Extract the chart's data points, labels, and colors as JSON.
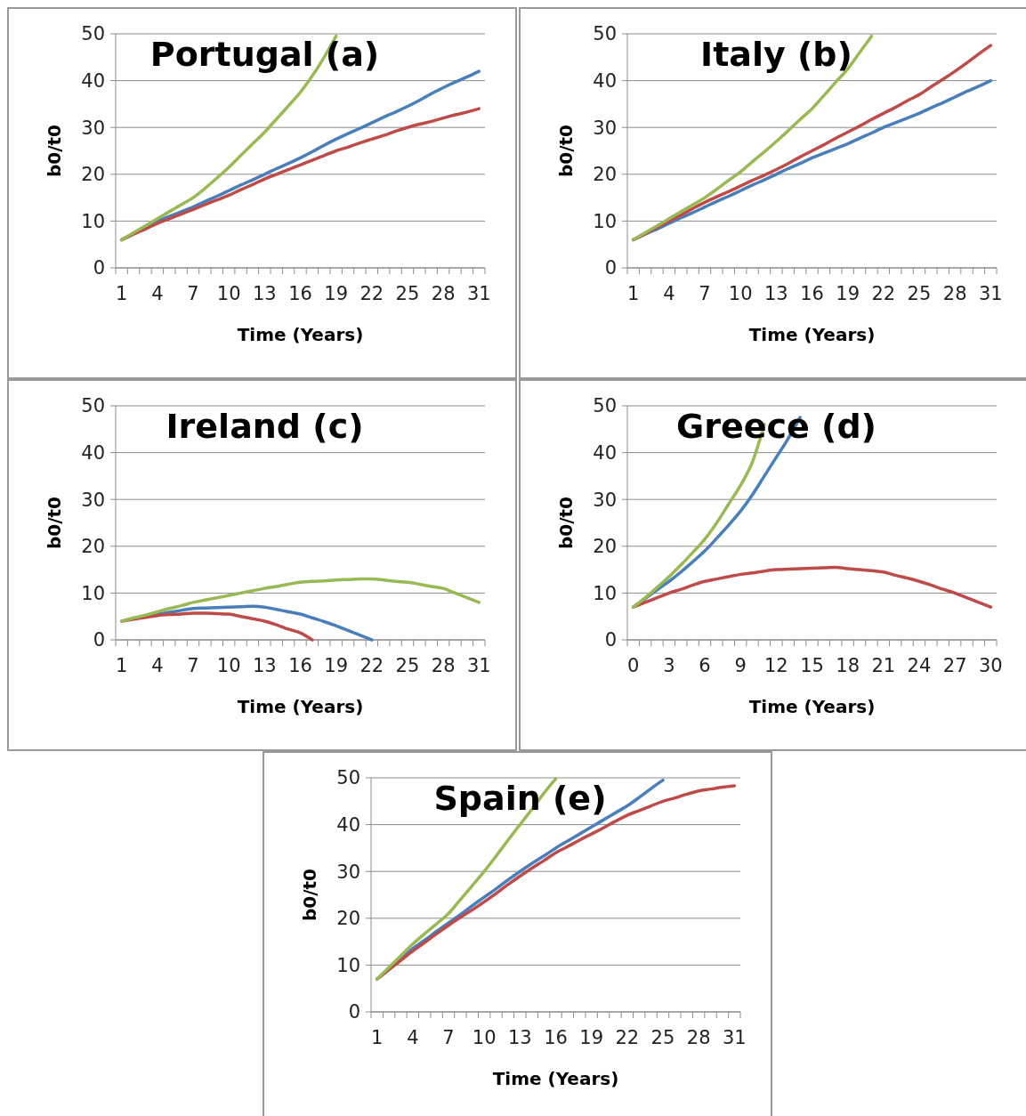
{
  "chart_data": [
    {
      "type": "line",
      "title": "Portugal (a)",
      "xlabel": "Time (Years)",
      "ylabel": "b0/t0",
      "categories": [
        "1",
        null,
        null,
        "4",
        null,
        null,
        "7",
        null,
        null,
        "10",
        null,
        null,
        "13",
        null,
        null,
        "16",
        null,
        null,
        "19",
        null,
        null,
        "22",
        null,
        null,
        "25",
        null,
        null,
        "28",
        null,
        null,
        "31"
      ],
      "ylim": [
        0,
        50
      ],
      "yticks": [
        0,
        10,
        20,
        30,
        40,
        50
      ],
      "grid": "y",
      "series": [
        {
          "color": "#4a7ebb",
          "values": [
            6,
            7.3,
            8.7,
            10,
            11,
            12,
            13,
            14.2,
            15.3,
            16.5,
            17.7,
            18.8,
            20,
            21.2,
            22.3,
            23.5,
            24.8,
            26.2,
            27.5,
            28.7,
            29.8,
            31,
            32.2,
            33.3,
            34.5,
            35.8,
            37.2,
            38.5,
            39.7,
            40.8,
            42
          ]
        },
        {
          "color": "#be4b48",
          "values": [
            6,
            7.2,
            8.3,
            9.5,
            10.5,
            11.5,
            12.5,
            13.5,
            14.5,
            15.5,
            16.7,
            17.8,
            19,
            20,
            21,
            22,
            23,
            24,
            25,
            25.8,
            26.7,
            27.5,
            28.3,
            29.2,
            30,
            30.7,
            31.3,
            32,
            32.7,
            33.3,
            34
          ]
        },
        {
          "color": "#98b954",
          "values": [
            6,
            7.5,
            9,
            10.5,
            12,
            13.5,
            15,
            17,
            19.2,
            21.5,
            24,
            26.5,
            29,
            31.8,
            34.6,
            37.5,
            41,
            45,
            49.5,
            null,
            null,
            null,
            null,
            null,
            null,
            null,
            null,
            null,
            null,
            null,
            null
          ]
        }
      ]
    },
    {
      "type": "line",
      "title": "Italy (b)",
      "xlabel": "Time (Years)",
      "ylabel": "b0/t0",
      "categories": [
        "1",
        null,
        null,
        "4",
        null,
        null,
        "7",
        null,
        null,
        "10",
        null,
        null,
        "13",
        null,
        null,
        "16",
        null,
        null,
        "19",
        null,
        null,
        "22",
        null,
        null,
        "25",
        null,
        null,
        "28",
        null,
        null,
        "31"
      ],
      "ylim": [
        0,
        50
      ],
      "yticks": [
        0,
        10,
        20,
        30,
        40,
        50
      ],
      "grid": "y",
      "series": [
        {
          "color": "#4a7ebb",
          "values": [
            6,
            7.2,
            8.3,
            9.5,
            10.7,
            11.8,
            13,
            14.2,
            15.3,
            16.5,
            17.7,
            18.8,
            20,
            21.2,
            22.3,
            23.5,
            24.5,
            25.5,
            26.5,
            27.7,
            28.8,
            30,
            31,
            32,
            33,
            34.2,
            35.3,
            36.5,
            37.7,
            38.8,
            40
          ]
        },
        {
          "color": "#be4b48",
          "values": [
            6,
            7.3,
            8.7,
            10,
            11.3,
            12.7,
            14,
            15.2,
            16.3,
            17.5,
            18.7,
            19.8,
            21,
            22.3,
            23.7,
            25,
            26.3,
            27.7,
            29,
            30.3,
            31.7,
            33,
            34.3,
            35.7,
            37,
            38.7,
            40.3,
            42,
            43.8,
            45.7,
            47.5
          ]
        },
        {
          "color": "#98b954",
          "values": [
            6,
            7.5,
            9,
            10.5,
            12,
            13.5,
            15,
            16.8,
            18.7,
            20.5,
            22.7,
            24.8,
            27,
            29.3,
            31.7,
            34,
            36.8,
            39.7,
            42.5,
            46,
            49.5,
            null,
            null,
            null,
            null,
            null,
            null,
            null,
            null,
            null,
            null
          ]
        }
      ]
    },
    {
      "type": "line",
      "title": "Ireland (c)",
      "xlabel": "Time (Years)",
      "ylabel": "b0/t0",
      "categories": [
        "1",
        null,
        null,
        "4",
        null,
        null,
        "7",
        null,
        null,
        "10",
        null,
        null,
        "13",
        null,
        null,
        "16",
        null,
        null,
        "19",
        null,
        null,
        "22",
        null,
        null,
        "25",
        null,
        null,
        "28",
        null,
        null,
        "31"
      ],
      "ylim": [
        0,
        50
      ],
      "yticks": [
        0,
        10,
        20,
        30,
        40,
        50
      ],
      "grid": "y",
      "series": [
        {
          "color": "#4a7ebb",
          "values": [
            null,
            null,
            5,
            5.5,
            5.9,
            6.3,
            6.7,
            6.8,
            6.9,
            7,
            7.1,
            7.2,
            7,
            6.5,
            6,
            5.5,
            4.7,
            3.9,
            3,
            2,
            1,
            0,
            null,
            null,
            null,
            null,
            null,
            null,
            null,
            null,
            null
          ]
        },
        {
          "color": "#be4b48",
          "values": [
            4,
            4.4,
            4.8,
            5.2,
            5.4,
            5.5,
            5.7,
            5.7,
            5.6,
            5.5,
            5,
            4.5,
            4,
            3.2,
            2.3,
            1.5,
            0,
            null,
            null,
            null,
            null,
            null,
            null,
            null,
            null,
            null,
            null,
            null,
            null,
            null,
            null
          ]
        },
        {
          "color": "#98b954",
          "values": [
            4,
            4.7,
            5.3,
            6,
            6.7,
            7.3,
            8,
            8.5,
            9,
            9.5,
            10,
            10.5,
            11,
            11.4,
            11.9,
            12.3,
            12.5,
            12.6,
            12.8,
            12.9,
            13,
            13,
            12.8,
            12.5,
            12.3,
            11.9,
            11.4,
            11,
            10,
            9,
            8
          ]
        }
      ]
    },
    {
      "type": "line",
      "title": "Greece (d)",
      "xlabel": "Time (Years)",
      "ylabel": "b0/t0",
      "categories": [
        "0",
        null,
        null,
        "3",
        null,
        null,
        "6",
        null,
        null,
        "9",
        null,
        null,
        "12",
        null,
        null,
        "15",
        null,
        null,
        "18",
        null,
        null,
        "21",
        null,
        null,
        "24",
        null,
        null,
        "27",
        null,
        null,
        "30"
      ],
      "ylim": [
        0,
        50
      ],
      "yticks": [
        0,
        10,
        20,
        30,
        40,
        50
      ],
      "grid": "y",
      "series": [
        {
          "color": "#4a7ebb",
          "values": [
            7,
            8.8,
            10.7,
            12.5,
            14.5,
            16.7,
            19,
            21.7,
            24.5,
            27.5,
            31,
            35,
            39,
            43,
            47.5,
            null,
            null,
            null,
            null,
            null,
            null,
            null,
            null,
            null,
            null,
            null,
            null,
            null,
            null,
            null,
            null
          ]
        },
        {
          "color": "#be4b48",
          "values": [
            7,
            8,
            9,
            10,
            10.8,
            11.7,
            12.5,
            13,
            13.5,
            14,
            14.3,
            14.7,
            15,
            15.1,
            15.2,
            15.3,
            15.4,
            15.5,
            15.2,
            15,
            14.8,
            14.5,
            13.8,
            13.2,
            12.5,
            11.7,
            10.8,
            10,
            9,
            8,
            7
          ]
        },
        {
          "color": "#98b954",
          "values": [
            7,
            9,
            11.2,
            13.5,
            16,
            18.7,
            21.5,
            25,
            29,
            33,
            38,
            46,
            null,
            null,
            null,
            null,
            null,
            null,
            null,
            null,
            null,
            null,
            null,
            null,
            null,
            null,
            null,
            null,
            null,
            null,
            null
          ]
        }
      ]
    },
    {
      "type": "line",
      "title": "Spain (e)",
      "xlabel": "Time (Years)",
      "ylabel": "b0/t0",
      "categories": [
        "1",
        null,
        null,
        "4",
        null,
        null,
        "7",
        null,
        null,
        "10",
        null,
        null,
        "13",
        null,
        null,
        "16",
        null,
        null,
        "19",
        null,
        null,
        "22",
        null,
        null,
        "25",
        null,
        null,
        "28",
        null,
        null,
        "31"
      ],
      "ylim": [
        0,
        50
      ],
      "yticks": [
        0,
        10,
        20,
        30,
        40,
        50
      ],
      "grid": "y",
      "series": [
        {
          "color": "#4a7ebb",
          "values": [
            7,
            9.2,
            11.3,
            13.5,
            15.3,
            17.2,
            19,
            20.8,
            22.7,
            24.5,
            26.3,
            28.2,
            30,
            31.7,
            33.3,
            35,
            36.5,
            38,
            39.5,
            41,
            42.5,
            44,
            45.8,
            47.7,
            49.5,
            null,
            null,
            null,
            null,
            null,
            null
          ]
        },
        {
          "color": "#be4b48",
          "values": [
            7,
            9,
            11,
            13,
            14.8,
            16.7,
            18.5,
            20.2,
            21.8,
            23.5,
            25.3,
            27.2,
            29,
            30.7,
            32.3,
            34,
            35.3,
            36.7,
            38,
            39.3,
            40.7,
            42,
            43,
            44,
            45,
            45.7,
            46.5,
            47.2,
            47.6,
            48,
            48.3
          ]
        },
        {
          "color": "#98b954",
          "values": [
            7,
            9.5,
            12,
            14.5,
            16.7,
            18.8,
            21,
            24,
            27,
            30,
            33.3,
            36.7,
            40,
            43.3,
            46.7,
            49.8,
            null,
            null,
            null,
            null,
            null,
            null,
            null,
            null,
            null,
            null,
            null,
            null,
            null,
            null,
            null
          ]
        }
      ]
    }
  ]
}
